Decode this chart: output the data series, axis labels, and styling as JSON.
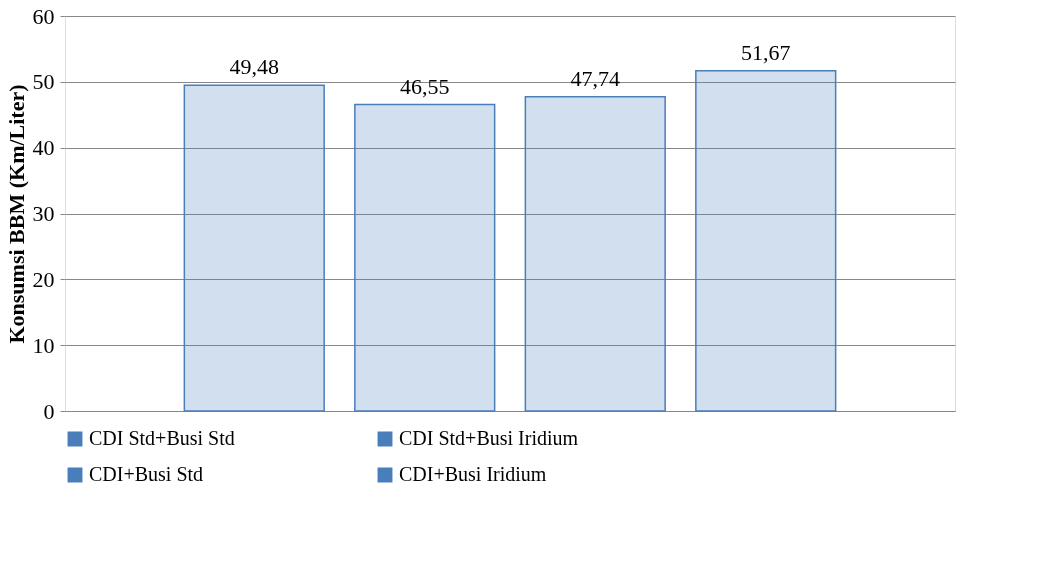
{
  "chart_data": {
    "type": "bar",
    "ylabel": "Konsumsi BBM (Km/Liter)",
    "categories": [
      null
    ],
    "series": [
      {
        "name": "CDI Std+Busi Std",
        "color": "#4a7ebb",
        "values": [
          49.48
        ],
        "value_labels": [
          "49,48"
        ]
      },
      {
        "name": "CDI Std+Busi Iridium",
        "color": "#4a7ebb",
        "values": [
          46.55
        ],
        "value_labels": [
          "46,55"
        ]
      },
      {
        "name": "CDI+Busi Std",
        "color": "#4a7ebb",
        "values": [
          47.74
        ],
        "value_labels": [
          "47,74"
        ]
      },
      {
        "name": "CDI+Busi Iridium",
        "color": "#4a7ebb",
        "values": [
          51.67
        ],
        "value_labels": [
          "51,67"
        ]
      }
    ],
    "ylim": [
      0,
      60
    ],
    "yticks": [
      0,
      10,
      20,
      30,
      40,
      50,
      60
    ],
    "grid": "y",
    "legend": "bottom"
  }
}
